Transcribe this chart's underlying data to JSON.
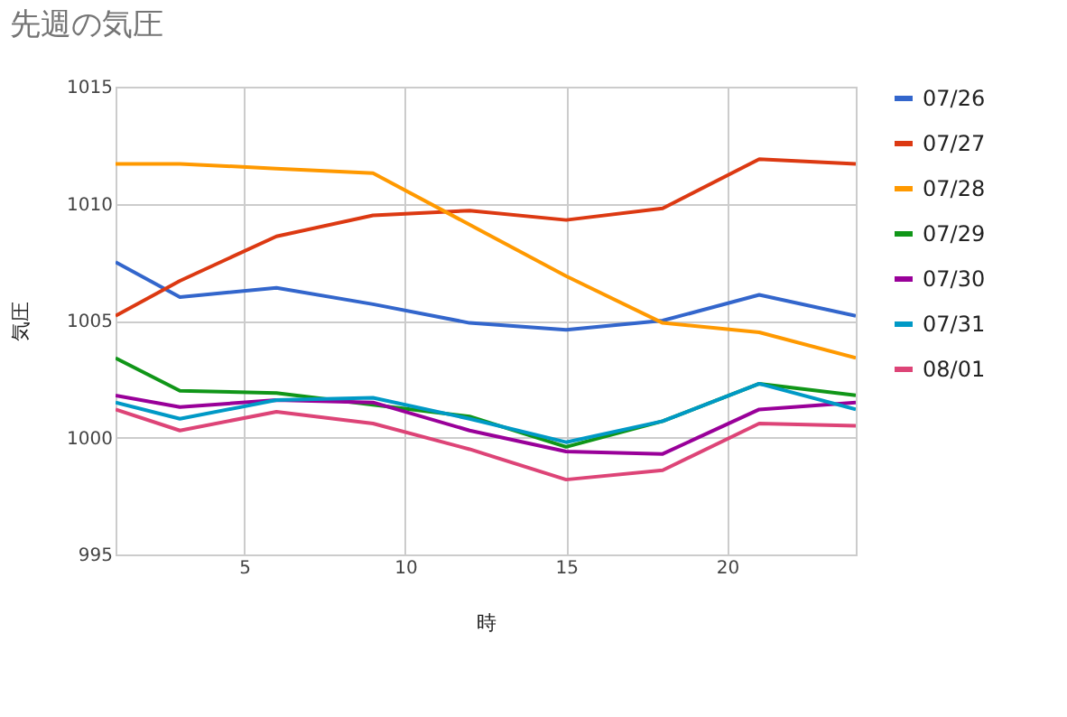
{
  "chart_data": {
    "type": "line",
    "title": "先週の気圧",
    "xlabel": "時",
    "ylabel": "気圧",
    "x": [
      1,
      3,
      6,
      9,
      12,
      15,
      18,
      21,
      24
    ],
    "xlim": [
      1,
      24
    ],
    "xticks": [
      5,
      10,
      15,
      20
    ],
    "ylim": [
      995,
      1015
    ],
    "yticks": [
      995,
      1000,
      1005,
      1010,
      1015
    ],
    "grid": true,
    "legend": "right",
    "marker": "none",
    "line_style": "solid",
    "series": [
      {
        "name": "07/26",
        "color": "#3366cc",
        "values": [
          1007.5,
          1006.0,
          1006.4,
          1005.7,
          1004.9,
          1004.6,
          1005.0,
          1006.1,
          1005.2
        ]
      },
      {
        "name": "07/27",
        "color": "#dc3912",
        "values": [
          1005.2,
          1006.7,
          1008.6,
          1009.5,
          1009.7,
          1009.3,
          1009.8,
          1011.9,
          1011.7
        ]
      },
      {
        "name": "07/28",
        "color": "#ff9900",
        "values": [
          1011.7,
          1011.7,
          1011.5,
          1011.3,
          1009.1,
          1006.9,
          1004.9,
          1004.5,
          1003.4
        ]
      },
      {
        "name": "07/29",
        "color": "#109618",
        "values": [
          1003.4,
          1002.0,
          1001.9,
          1001.4,
          1000.9,
          999.6,
          1000.7,
          1002.3,
          1001.8
        ]
      },
      {
        "name": "07/30",
        "color": "#990099",
        "values": [
          1001.8,
          1001.3,
          1001.6,
          1001.5,
          1000.3,
          999.4,
          999.3,
          1001.2,
          1001.5
        ]
      },
      {
        "name": "07/31",
        "color": "#0099c6",
        "values": [
          1001.5,
          1000.8,
          1001.6,
          1001.7,
          1000.8,
          999.8,
          1000.7,
          1002.3,
          1001.2
        ]
      },
      {
        "name": "08/01",
        "color": "#dd4477",
        "values": [
          1001.2,
          1000.3,
          1001.1,
          1000.6,
          999.5,
          998.2,
          998.6,
          1000.6,
          1000.5
        ]
      }
    ]
  }
}
